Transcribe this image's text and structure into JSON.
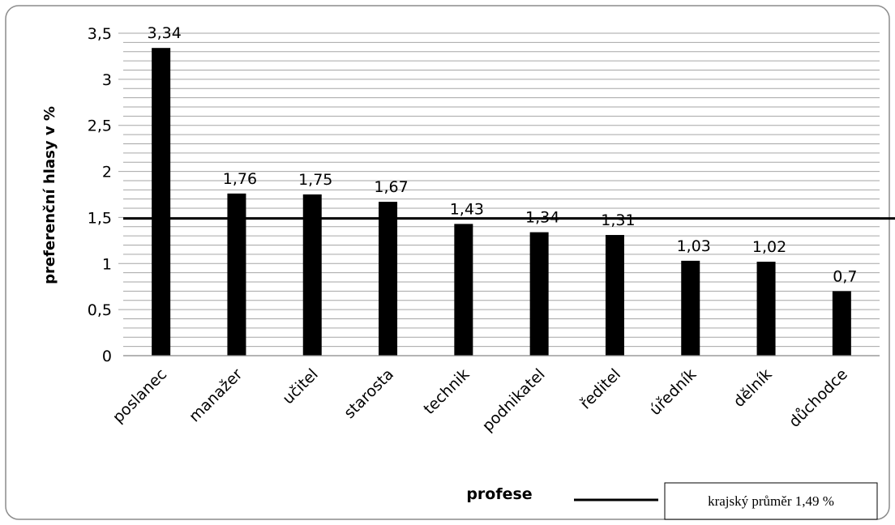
{
  "chart_data": {
    "type": "bar",
    "categories": [
      "poslanec",
      "manažer",
      "učitel",
      "starosta",
      "technik",
      "podnikatel",
      "ředitel",
      "úředník",
      "dělník",
      "důchodce"
    ],
    "values": [
      3.34,
      1.76,
      1.75,
      1.67,
      1.43,
      1.34,
      1.31,
      1.03,
      1.02,
      0.7
    ],
    "data_labels": [
      "3,34",
      "1,76",
      "1,75",
      "1,67",
      "1,43",
      "1,34",
      "1,31",
      "1,03",
      "1,02",
      "0,7"
    ],
    "xlabel": "profese",
    "ylabel": "preferenční hlasy v %",
    "ylim": [
      0,
      3.5
    ],
    "yticks": [
      0,
      0.5,
      1,
      1.5,
      2,
      2.5,
      3,
      3.5
    ],
    "ytick_labels": [
      "0",
      "0,5",
      "1",
      "1,5",
      "2",
      "2,5",
      "3",
      "3,5"
    ],
    "minor_grid_step": 0.1,
    "grid": true,
    "reference_line": {
      "value": 1.49,
      "label": "krajský průměr 1,49 %"
    },
    "bar_color": "#000000",
    "legend_position": "bottom-right"
  }
}
